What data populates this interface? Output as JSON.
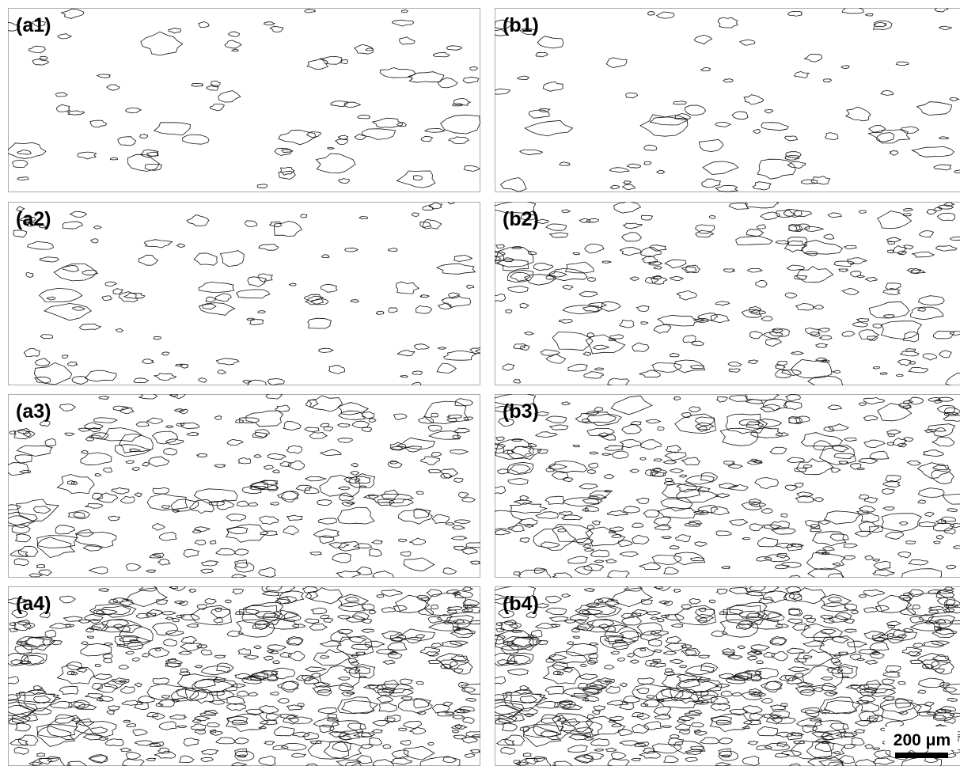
{
  "panels": [
    {
      "label": "(a1)"
    },
    {
      "label": "(b1)"
    },
    {
      "label": "(a2)"
    },
    {
      "label": "(b2)"
    },
    {
      "label": "(a3)"
    },
    {
      "label": "(b3)"
    },
    {
      "label": "(a4)"
    },
    {
      "label": "(b4)"
    }
  ],
  "scale_bar": {
    "label": "200 μm"
  }
}
